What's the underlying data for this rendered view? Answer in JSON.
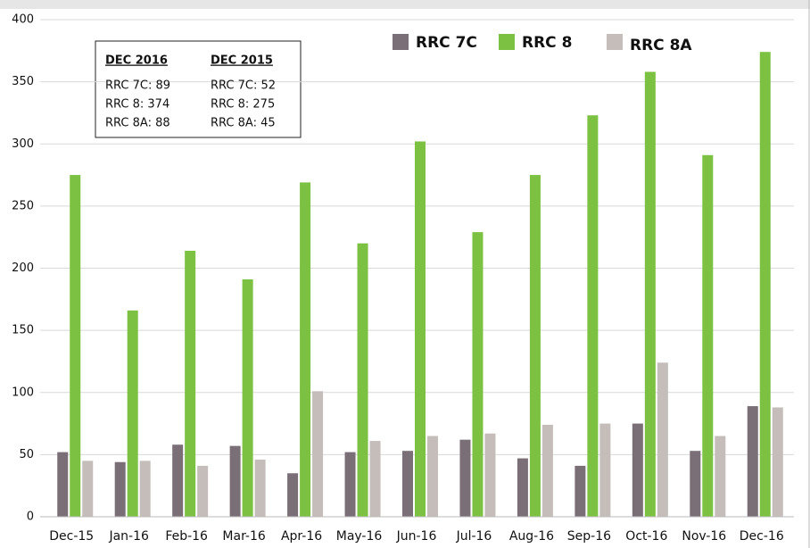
{
  "chart_data": {
    "type": "bar",
    "categories": [
      "Dec-15",
      "Jan-16",
      "Feb-16",
      "Mar-16",
      "Apr-16",
      "May-16",
      "Jun-16",
      "Jul-16",
      "Aug-16",
      "Sep-16",
      "Oct-16",
      "Nov-16",
      "Dec-16"
    ],
    "series": [
      {
        "name": "RRC 7C",
        "color": "#7b6f77",
        "values": [
          52,
          44,
          58,
          57,
          35,
          52,
          53,
          62,
          47,
          41,
          75,
          53,
          89
        ]
      },
      {
        "name": "RRC 8",
        "color": "#7cc142",
        "values": [
          275,
          166,
          214,
          191,
          269,
          220,
          302,
          229,
          275,
          323,
          358,
          291,
          374
        ]
      },
      {
        "name": "RRC 8A",
        "color": "#c4bdb9",
        "values": [
          45,
          45,
          41,
          46,
          101,
          61,
          65,
          67,
          74,
          75,
          124,
          65,
          88
        ]
      }
    ],
    "ylim": [
      0,
      400
    ],
    "yticks": [
      0,
      50,
      100,
      150,
      200,
      250,
      300,
      350,
      400
    ],
    "grid": true,
    "annotation": {
      "columns": [
        {
          "heading": "DEC 2016",
          "lines": [
            "RRC 7C: 89",
            "RRC 8: 374",
            "RRC 8A: 88"
          ]
        },
        {
          "heading": "DEC 2015",
          "lines": [
            "RRC 7C: 52",
            "RRC 8: 275",
            "RRC 8A: 45"
          ]
        }
      ]
    }
  }
}
